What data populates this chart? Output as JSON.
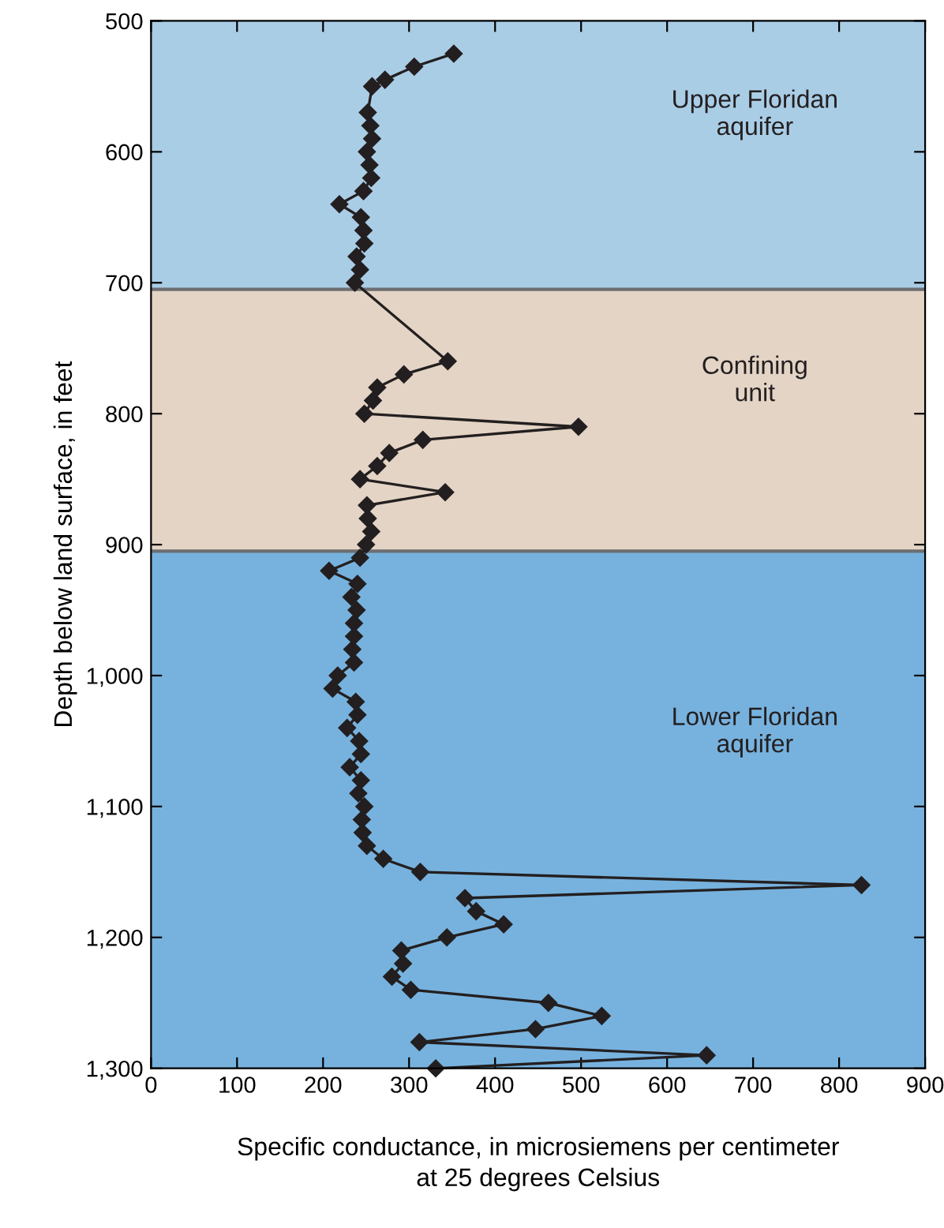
{
  "chart_data": {
    "type": "line",
    "xlabel": "Specific conductance, in microsiemens per centimeter\nat 25 degrees Celsius",
    "ylabel": "Depth below land surface, in feet",
    "marker": "diamond",
    "line_style": "solid",
    "grid": false,
    "legend": false,
    "xlim": [
      0,
      900
    ],
    "xticks": [
      0,
      100,
      200,
      300,
      400,
      500,
      600,
      700,
      800,
      900
    ],
    "ylim": [
      1300,
      500
    ],
    "yticks": [
      500,
      600,
      700,
      800,
      900,
      {
        "value": 1000,
        "label": "1,000"
      },
      {
        "value": 1100,
        "label": "1,100"
      },
      {
        "value": 1200,
        "label": "1,200"
      },
      {
        "value": 1300,
        "label": "1,300"
      }
    ],
    "bands": [
      {
        "axis": "y",
        "from": 500,
        "to": 705,
        "label": "Upper Floridan\naquifer",
        "color": "#aacde6"
      },
      {
        "axis": "y",
        "from": 705,
        "to": 905,
        "label": "Confining\nunit",
        "color": "#e3d4c5"
      },
      {
        "axis": "y",
        "from": 905,
        "to": 1300,
        "label": "Lower Floridan\naquifer",
        "color": "#77b2de"
      }
    ],
    "ref_lines": [
      {
        "axis": "y",
        "value": 705,
        "color": "#6d6e71"
      },
      {
        "axis": "y",
        "value": 905,
        "color": "#6d6e71"
      }
    ],
    "series": [
      {
        "color": "#231f20",
        "x": [
          352,
          306,
          272,
          257,
          252,
          255,
          257,
          251,
          254,
          256,
          247,
          219,
          244,
          247,
          248,
          239,
          243,
          237,
          345,
          294,
          263,
          258,
          248,
          497,
          316,
          277,
          263,
          243,
          342,
          251,
          252,
          256,
          250,
          243,
          207,
          240,
          233,
          239,
          236,
          236,
          234,
          236,
          217,
          211,
          238,
          240,
          228,
          242,
          244,
          231,
          244,
          241,
          248,
          245,
          246,
          251,
          270,
          313,
          826,
          365,
          378,
          410,
          344,
          291,
          293,
          280,
          302,
          462,
          524,
          447,
          312,
          646,
          331
        ],
        "values": [
          525,
          535,
          545,
          550,
          570,
          580,
          590,
          600,
          610,
          620,
          630,
          640,
          650,
          660,
          670,
          680,
          690,
          700,
          760,
          770,
          780,
          790,
          800,
          810,
          820,
          830,
          840,
          850,
          860,
          870,
          880,
          890,
          900,
          910,
          920,
          930,
          940,
          950,
          960,
          970,
          980,
          990,
          1000,
          1010,
          1020,
          1030,
          1040,
          1050,
          1060,
          1070,
          1080,
          1090,
          1100,
          1110,
          1120,
          1130,
          1140,
          1150,
          1160,
          1170,
          1180,
          1190,
          1200,
          1210,
          1220,
          1230,
          1240,
          1250,
          1260,
          1270,
          1280,
          1290,
          1300
        ]
      }
    ]
  }
}
